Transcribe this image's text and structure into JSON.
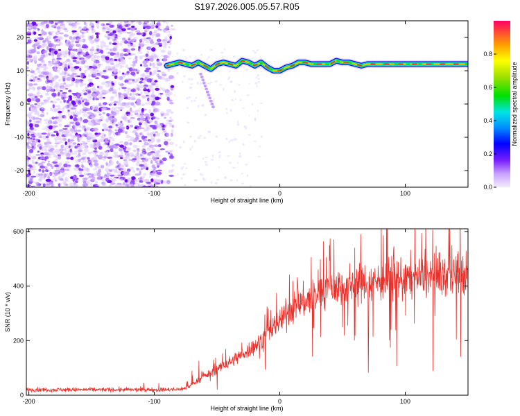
{
  "title": "S197.2026.005.05.57.R05",
  "chart_data": [
    {
      "type": "heatmap",
      "name": "spectrogram",
      "xlabel": "Height of straight line (km)",
      "ylabel": "Frequency (Hz)",
      "xlim": [
        -202,
        150
      ],
      "ylim": [
        -25,
        25
      ],
      "x_ticks": [
        -200,
        -100,
        0,
        100
      ],
      "x_tick_labels": [
        "-200",
        "-100",
        "0",
        "100"
      ],
      "y_ticks": [
        -20,
        -10,
        0,
        10,
        20
      ],
      "y_tick_labels": [
        "-20",
        "-10",
        "0",
        "10",
        "20"
      ],
      "noise_region_x": [
        -202,
        -85
      ],
      "tone_trace": {
        "x": [
          -90,
          -85,
          -80,
          -75,
          -70,
          -65,
          -60,
          -55,
          -50,
          -45,
          -40,
          -35,
          -30,
          -25,
          -20,
          -15,
          -10,
          -5,
          0,
          5,
          10,
          15,
          20,
          25,
          30,
          35,
          40,
          45,
          50,
          55,
          60,
          65,
          70,
          80,
          90,
          100,
          110,
          120,
          130,
          140,
          150
        ],
        "freq": [
          11.5,
          12,
          12.5,
          12,
          11.5,
          12.5,
          11.5,
          10.5,
          12,
          12.5,
          12,
          11.5,
          13,
          12.5,
          11.5,
          12.5,
          11,
          10,
          10,
          11,
          11.5,
          12.5,
          12.5,
          12,
          12,
          12,
          12,
          13,
          12.5,
          12.5,
          12,
          11.5,
          12,
          12,
          12,
          12,
          12,
          12,
          12,
          12,
          12
        ]
      },
      "colorbar": {
        "label": "Normalized spectral amplitude",
        "range": [
          0,
          1
        ],
        "ticks": [
          0.0,
          0.2,
          0.4,
          0.6,
          0.8
        ],
        "tick_labels": [
          "0.0",
          "0.2",
          "0.4",
          "0.6",
          "0.8"
        ]
      }
    },
    {
      "type": "line",
      "name": "snr",
      "xlabel": "Height of straight line (km)",
      "ylabel": "SNR (10 * v/v)",
      "xlim": [
        -202,
        150
      ],
      "ylim": [
        0,
        610
      ],
      "x_ticks": [
        -200,
        -100,
        0,
        100
      ],
      "x_tick_labels": [
        "-200",
        "-100",
        "0",
        "100"
      ],
      "y_ticks": [
        0,
        200,
        400,
        600
      ],
      "y_tick_labels": [
        "0",
        "200",
        "400",
        "600"
      ],
      "series": [
        {
          "name": "SNR",
          "color": "#e8302a",
          "x": [
            -202,
            -150,
            -100,
            -85,
            -75,
            -70,
            -65,
            -60,
            -55,
            -50,
            -45,
            -40,
            -35,
            -30,
            -25,
            -20,
            -15,
            -10,
            -5,
            0,
            5,
            10,
            15,
            20,
            25,
            30,
            40,
            50,
            60,
            70,
            80,
            90,
            100,
            110,
            120,
            130,
            140,
            150
          ],
          "values": [
            20,
            20,
            20,
            20,
            25,
            40,
            55,
            70,
            80,
            95,
            110,
            120,
            135,
            150,
            165,
            180,
            200,
            225,
            250,
            270,
            300,
            320,
            335,
            345,
            355,
            370,
            395,
            400,
            410,
            415,
            420,
            425,
            430,
            430,
            435,
            435,
            440,
            440
          ]
        }
      ]
    }
  ]
}
